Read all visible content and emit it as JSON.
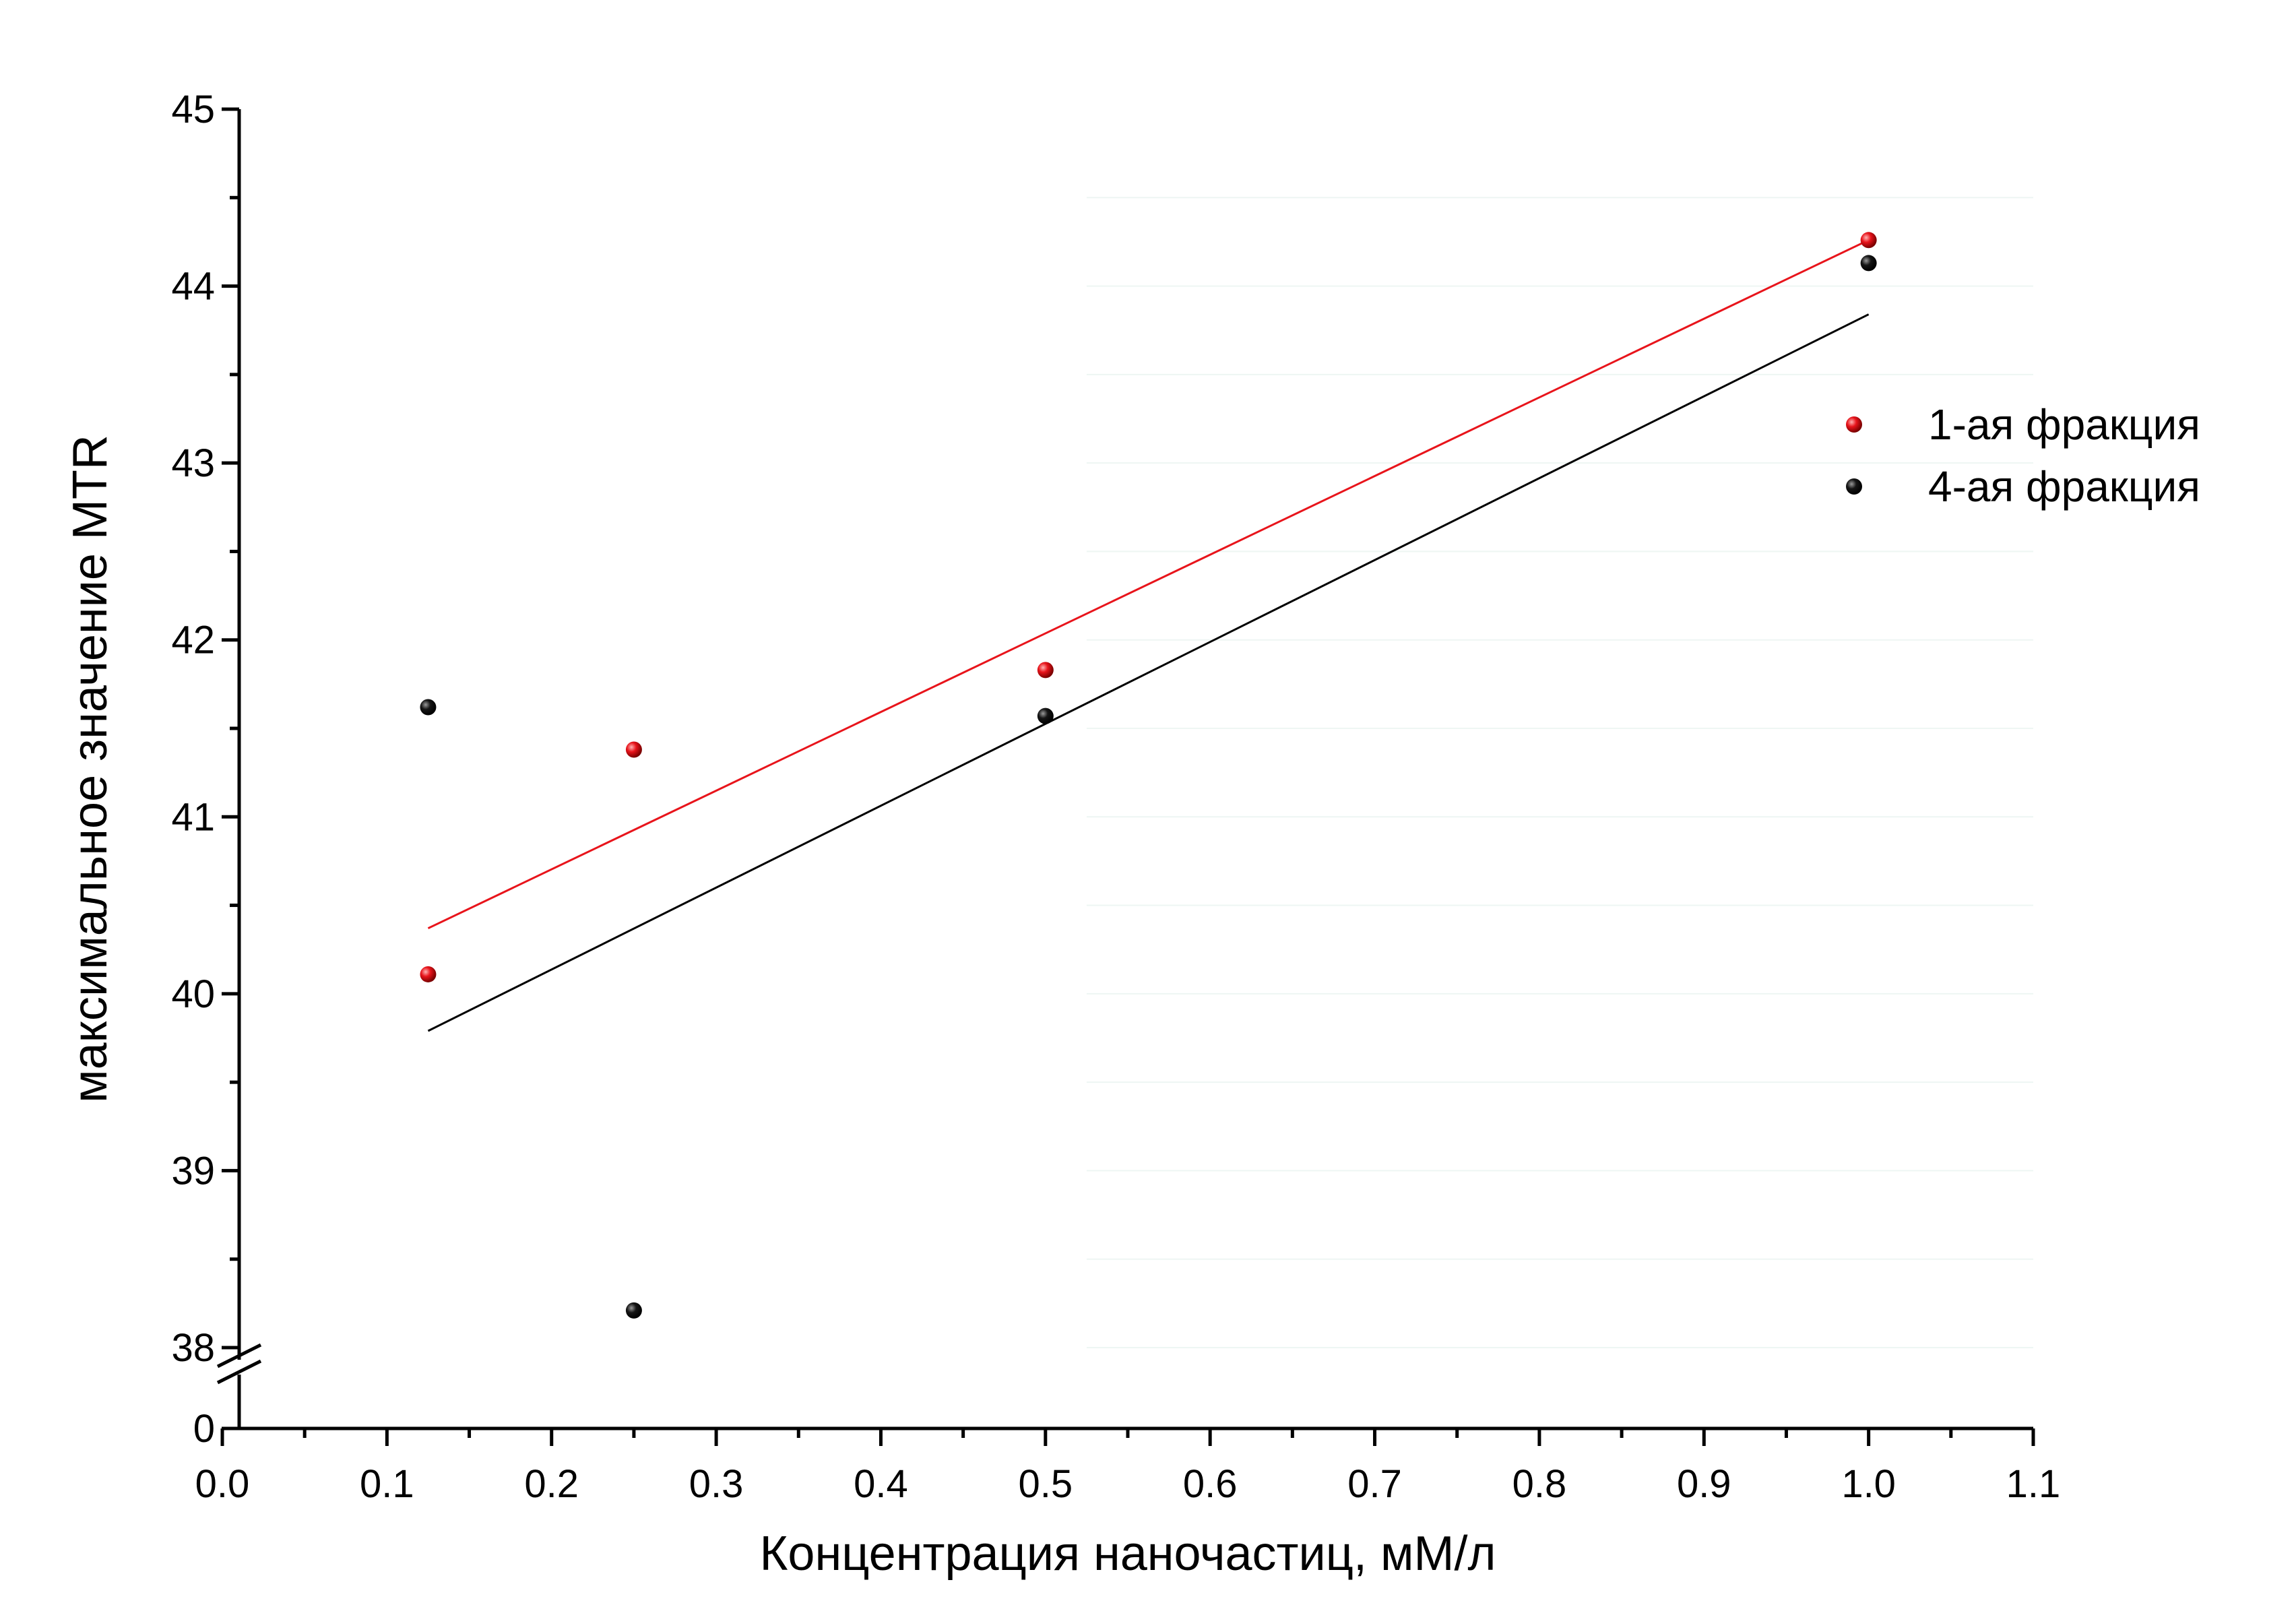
{
  "chart_data": {
    "type": "scatter",
    "title": "",
    "xlabel": "Концентрация наночастиц, мМ/л",
    "ylabel": "максимальное значение MTR",
    "xlim": [
      0.0,
      1.1
    ],
    "ylim_upper": [
      38,
      45
    ],
    "y_axis_break": {
      "from": 0,
      "to": 38
    },
    "xticks": [
      "0.0",
      "0.1",
      "0.2",
      "0.3",
      "0.4",
      "0.5",
      "0.6",
      "0.7",
      "0.8",
      "0.9",
      "1.0",
      "1.1"
    ],
    "yticks": [
      "45",
      "44",
      "43",
      "42",
      "41",
      "40",
      "39",
      "38",
      "0"
    ],
    "legend_position": "right",
    "grid": "faint horizontal lines on right half",
    "series": [
      {
        "name": "1-ая фракция",
        "color": "#e8141b",
        "marker": "sphere",
        "points": [
          {
            "x": 0.125,
            "y": 40.11
          },
          {
            "x": 0.25,
            "y": 41.38
          },
          {
            "x": 0.5,
            "y": 41.83
          },
          {
            "x": 1.0,
            "y": 44.26
          }
        ],
        "fit_line": {
          "x": [
            0.125,
            1.0
          ],
          "y": [
            40.37,
            44.26
          ]
        }
      },
      {
        "name": "4-ая фракция",
        "color": "#000000",
        "marker": "sphere",
        "points": [
          {
            "x": 0.125,
            "y": 41.62
          },
          {
            "x": 0.25,
            "y": 38.21
          },
          {
            "x": 0.5,
            "y": 41.57
          },
          {
            "x": 1.0,
            "y": 44.13
          }
        ],
        "fit_line": {
          "x": [
            0.125,
            1.0
          ],
          "y": [
            39.79,
            43.84
          ]
        }
      }
    ]
  }
}
